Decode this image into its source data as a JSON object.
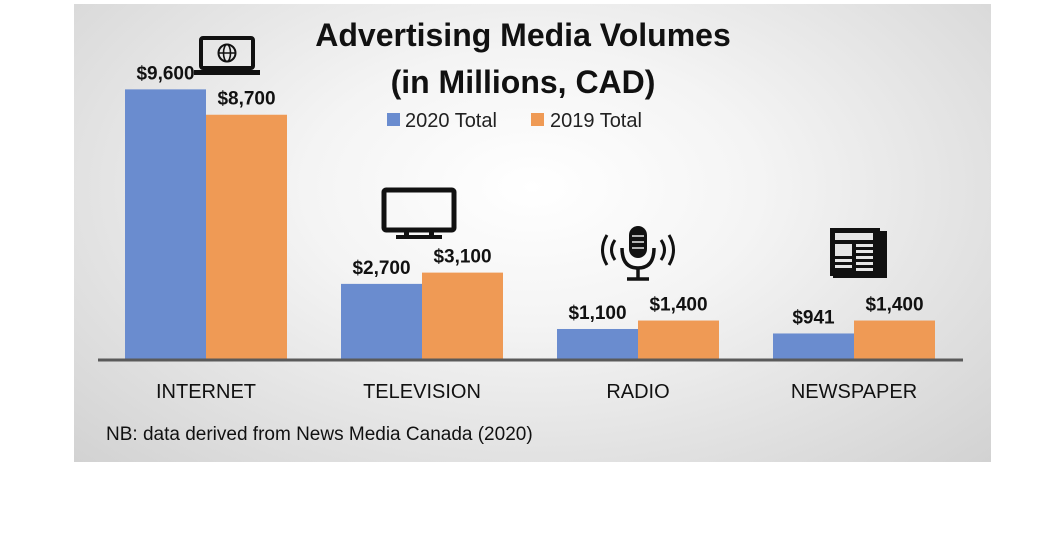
{
  "chart_data": {
    "type": "bar",
    "title": "Advertising Media Volumes",
    "subtitle": "(in Millions, CAD)",
    "categories": [
      "INTERNET",
      "TELEVISION",
      "RADIO",
      "NEWSPAPER"
    ],
    "series": [
      {
        "name": "2020 Total",
        "values": [
          9600,
          2700,
          1100,
          941
        ],
        "labels": [
          "$9,600",
          "$2,700",
          "$1,100",
          "$941"
        ],
        "color": "#6a8ccf"
      },
      {
        "name": "2019 Total",
        "values": [
          8700,
          3100,
          1400,
          1400
        ],
        "labels": [
          "$8,700",
          "$3,100",
          "$1,400",
          "$1,400"
        ],
        "color": "#ef9a55"
      }
    ],
    "icons": [
      "laptop-globe-icon",
      "television-icon",
      "microphone-icon",
      "newspaper-icon"
    ],
    "ylim": [
      0,
      10500
    ],
    "grid": false,
    "legend_position": "top-center",
    "note": "NB: data derived from News Media Canada (2020)"
  }
}
